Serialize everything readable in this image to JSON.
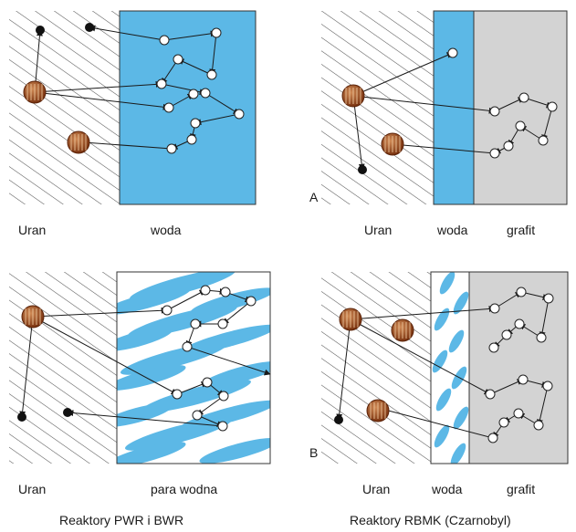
{
  "colors": {
    "water": "#5cb8e6",
    "graphite": "#d3d3d3",
    "uranium": "#a0522d",
    "line": "#1a1a1a"
  },
  "panels": {
    "top_left": {
      "labels": {
        "uranium": "Uran",
        "moderator": "woda"
      }
    },
    "top_right": {
      "marker": "A",
      "labels": {
        "uranium": "Uran",
        "water": "woda",
        "graphite": "grafit"
      }
    },
    "bottom_left": {
      "labels": {
        "uranium": "Uran",
        "moderator": "para wodna"
      }
    },
    "bottom_right": {
      "marker": "B",
      "labels": {
        "uranium": "Uran",
        "water": "woda",
        "graphite": "grafit"
      }
    }
  },
  "captions": {
    "left": "Reaktory PWR i BWR",
    "right": "Reaktory RBMK (Czarnobyl)"
  }
}
